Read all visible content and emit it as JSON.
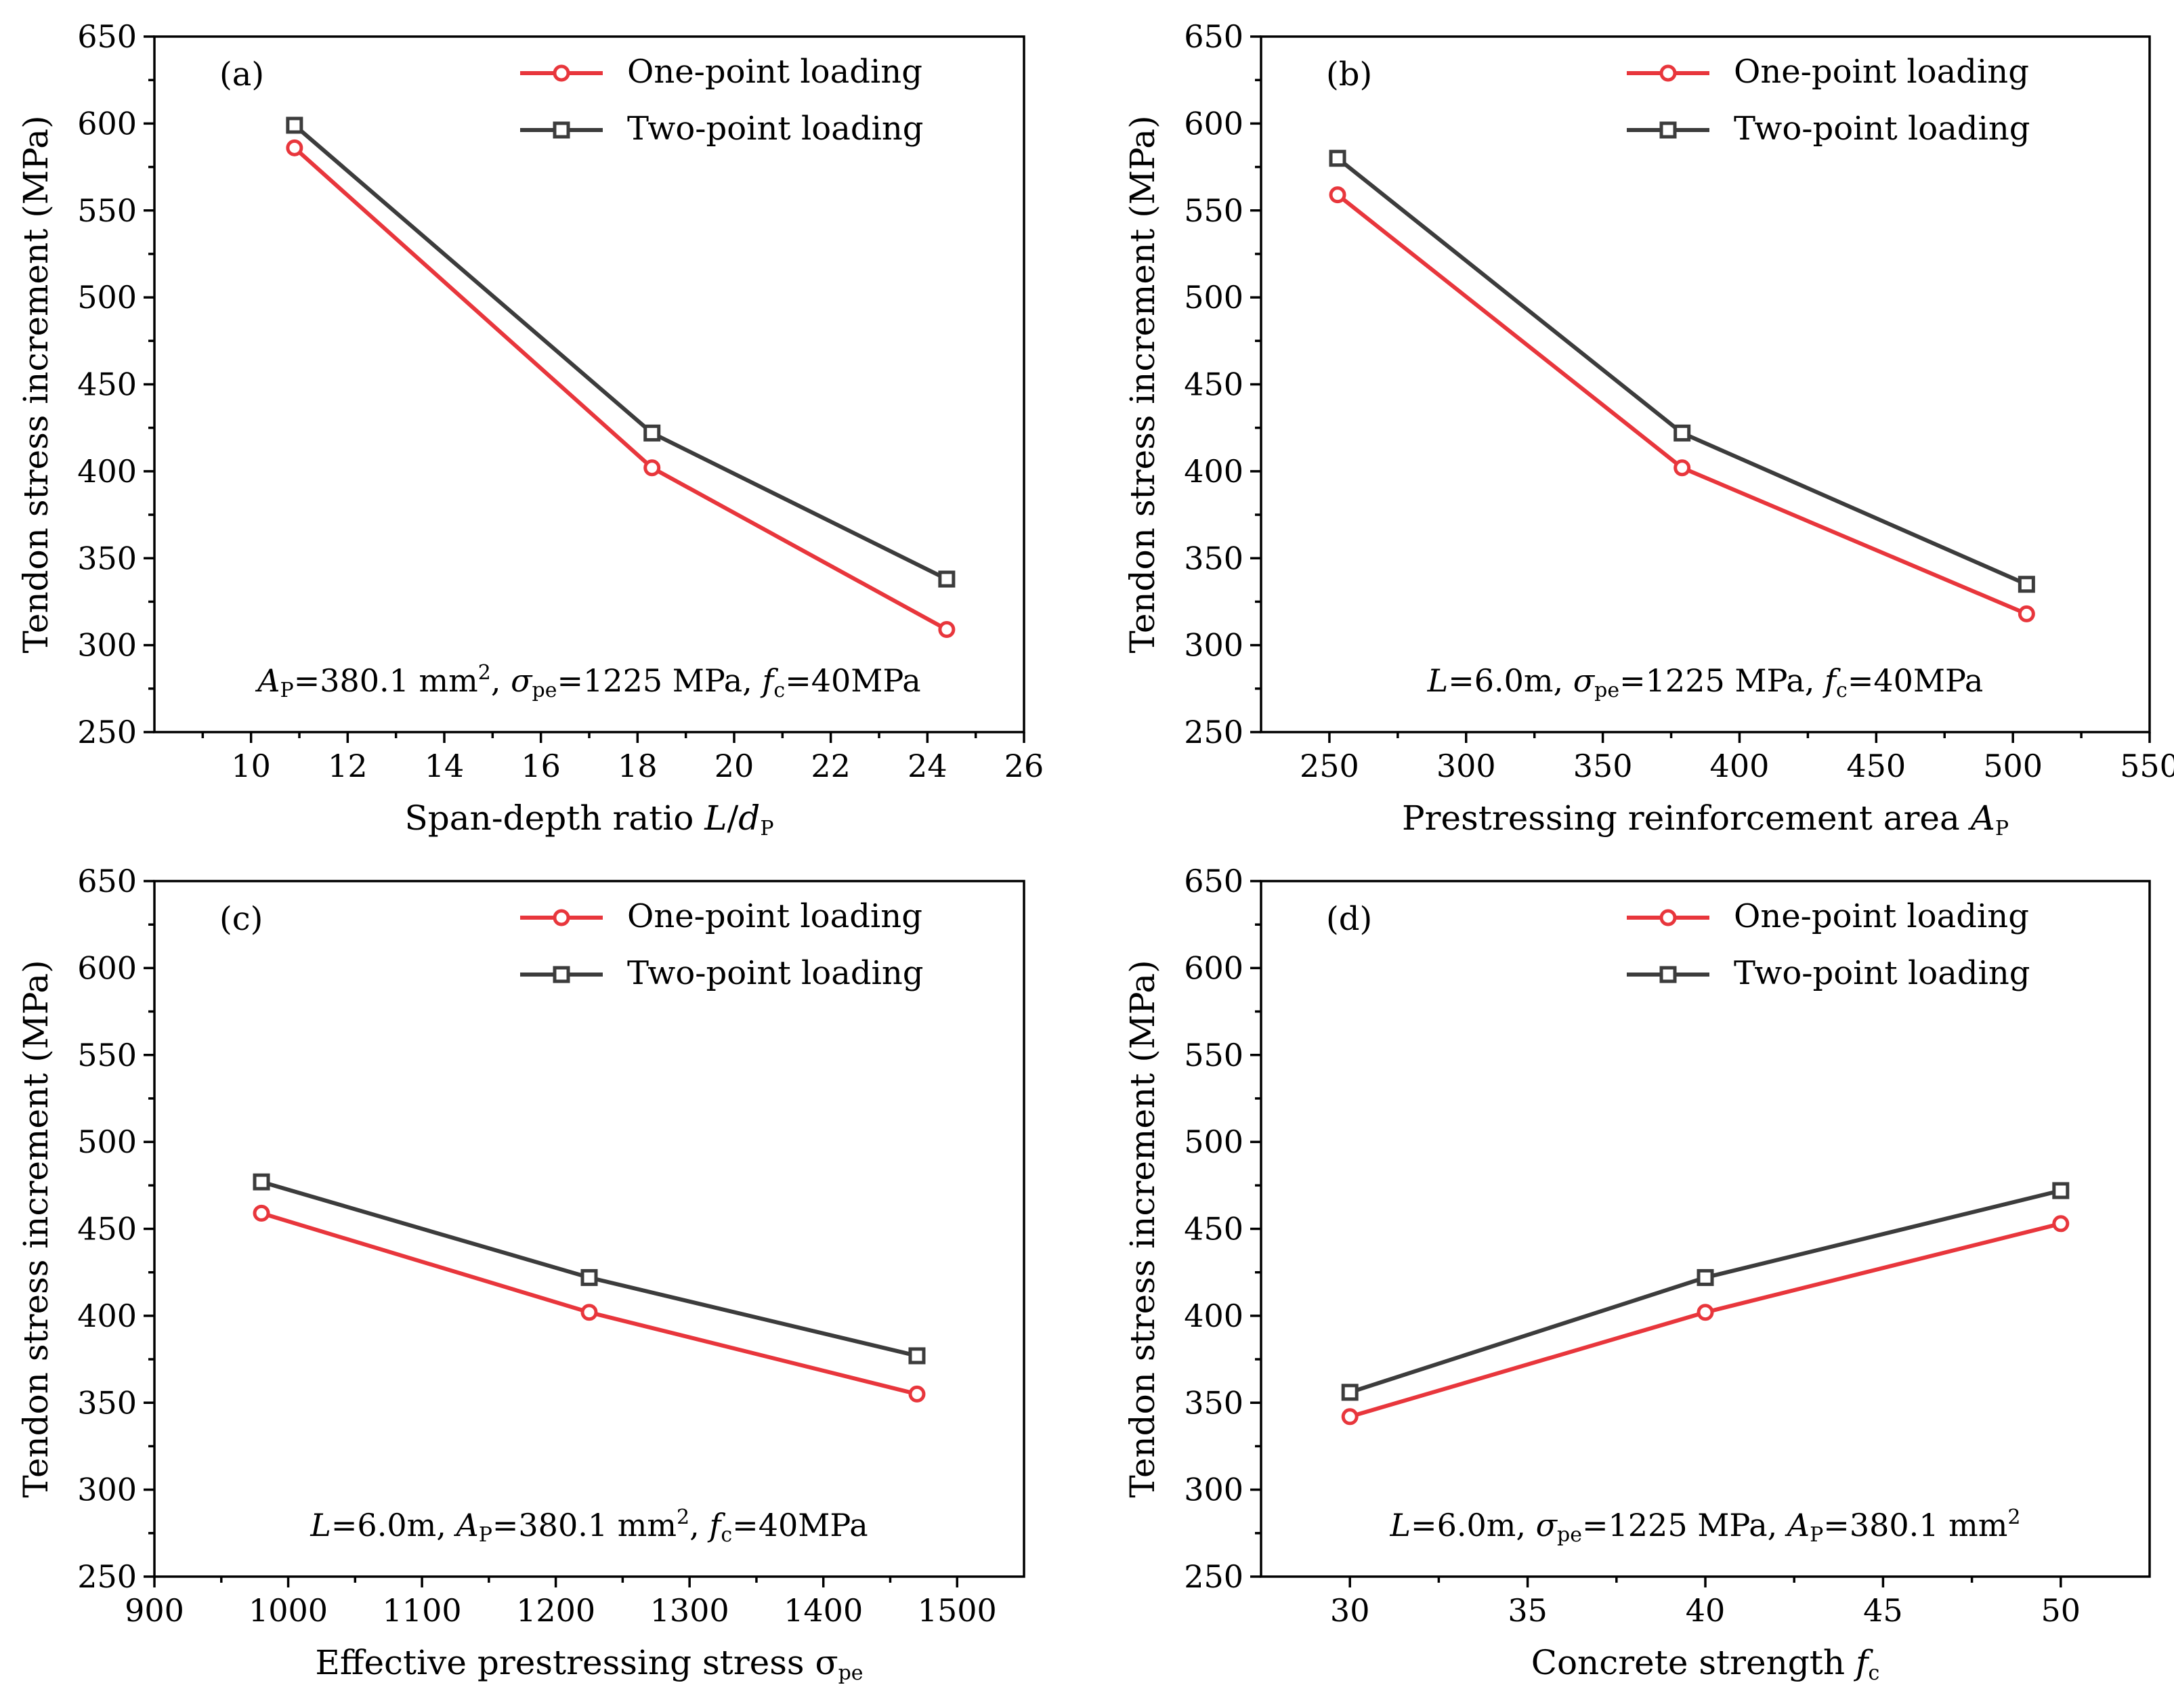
{
  "colors": {
    "one_point": "#e8363c",
    "two_point": "#3c3c3c",
    "axis": "#000000"
  },
  "legend": {
    "one_point": "One-point loading",
    "two_point": "Two-point loading"
  },
  "chart_data": [
    {
      "type": "line",
      "tag": "(a)",
      "xlim": [
        8,
        26
      ],
      "ylim": [
        250,
        650
      ],
      "xticks": [
        10,
        12,
        14,
        16,
        18,
        20,
        22,
        24,
        26
      ],
      "yticks": [
        250,
        300,
        350,
        400,
        450,
        500,
        550,
        600,
        650
      ],
      "ylabel": "Tendon stress increment (MPa)",
      "xlabel": [
        {
          "t": "Span-depth ratio "
        },
        {
          "t": "L",
          "i": true
        },
        {
          "t": "/"
        },
        {
          "t": "d",
          "i": true
        },
        {
          "t": "P",
          "sub": true
        }
      ],
      "note": [
        {
          "t": "A",
          "i": true
        },
        {
          "t": "P",
          "sub": true
        },
        {
          "t": "=380.1 mm"
        },
        {
          "t": "2",
          "sup": true
        },
        {
          "t": ", "
        },
        {
          "t": "σ",
          "i": true
        },
        {
          "t": "pe",
          "sub": true
        },
        {
          "t": "=1225 MPa, "
        },
        {
          "t": "f",
          "i": true
        },
        {
          "t": "c",
          "sub": true
        },
        {
          "t": "=40MPa"
        }
      ],
      "x": [
        10.9,
        18.3,
        24.4
      ],
      "series": [
        {
          "name": "One-point loading",
          "values": [
            586,
            402,
            309
          ]
        },
        {
          "name": "Two-point loading",
          "values": [
            599,
            422,
            338
          ]
        }
      ]
    },
    {
      "type": "line",
      "tag": "(b)",
      "xlim": [
        225,
        550
      ],
      "ylim": [
        250,
        650
      ],
      "xticks": [
        250,
        300,
        350,
        400,
        450,
        500,
        550
      ],
      "yticks": [
        250,
        300,
        350,
        400,
        450,
        500,
        550,
        600,
        650
      ],
      "ylabel": "Tendon stress increment (MPa)",
      "xlabel": [
        {
          "t": "Prestressing reinforcement area "
        },
        {
          "t": "A",
          "i": true
        },
        {
          "t": "P",
          "sub": true
        }
      ],
      "note": [
        {
          "t": "L",
          "i": true
        },
        {
          "t": "=6.0m, "
        },
        {
          "t": "σ",
          "i": true
        },
        {
          "t": "pe",
          "sub": true
        },
        {
          "t": "=1225 MPa, "
        },
        {
          "t": "f",
          "i": true
        },
        {
          "t": "c",
          "sub": true
        },
        {
          "t": "=40MPa"
        }
      ],
      "x": [
        253,
        379,
        505
      ],
      "series": [
        {
          "name": "One-point loading",
          "values": [
            559,
            402,
            318
          ]
        },
        {
          "name": "Two-point loading",
          "values": [
            580,
            422,
            335
          ]
        }
      ]
    },
    {
      "type": "line",
      "tag": "(c)",
      "xlim": [
        900,
        1550
      ],
      "ylim": [
        250,
        650
      ],
      "xticks": [
        900,
        1000,
        1100,
        1200,
        1300,
        1400,
        1500
      ],
      "yticks": [
        250,
        300,
        350,
        400,
        450,
        500,
        550,
        600,
        650
      ],
      "ylabel": "Tendon stress increment (MPa)",
      "xlabel": [
        {
          "t": "Effective prestressing stress σ"
        },
        {
          "t": "pe",
          "sub": true
        }
      ],
      "note": [
        {
          "t": "L",
          "i": true
        },
        {
          "t": "=6.0m, "
        },
        {
          "t": "A",
          "i": true
        },
        {
          "t": "P",
          "sub": true
        },
        {
          "t": "=380.1 mm"
        },
        {
          "t": "2",
          "sup": true
        },
        {
          "t": ", "
        },
        {
          "t": "f",
          "i": true
        },
        {
          "t": "c",
          "sub": true
        },
        {
          "t": "=40MPa"
        }
      ],
      "x": [
        980,
        1225,
        1470
      ],
      "series": [
        {
          "name": "One-point loading",
          "values": [
            459,
            402,
            355
          ]
        },
        {
          "name": "Two-point loading",
          "values": [
            477,
            422,
            377
          ]
        }
      ]
    },
    {
      "type": "line",
      "tag": "(d)",
      "xlim": [
        27.5,
        52.5
      ],
      "ylim": [
        250,
        650
      ],
      "xticks": [
        30,
        35,
        40,
        45,
        50
      ],
      "yticks": [
        250,
        300,
        350,
        400,
        450,
        500,
        550,
        600,
        650
      ],
      "ylabel": "Tendon stress increment (MPa)",
      "xlabel": [
        {
          "t": "Concrete strength "
        },
        {
          "t": "f",
          "i": true
        },
        {
          "t": "c",
          "sub": true
        }
      ],
      "note": [
        {
          "t": "L",
          "i": true
        },
        {
          "t": "=6.0m, "
        },
        {
          "t": "σ",
          "i": true
        },
        {
          "t": "pe",
          "sub": true
        },
        {
          "t": "=1225 MPa, "
        },
        {
          "t": "A",
          "i": true
        },
        {
          "t": "P",
          "sub": true
        },
        {
          "t": "=380.1 mm"
        },
        {
          "t": "2",
          "sup": true
        }
      ],
      "x": [
        30,
        40,
        50
      ],
      "series": [
        {
          "name": "One-point loading",
          "values": [
            342,
            402,
            453
          ]
        },
        {
          "name": "Two-point loading",
          "values": [
            356,
            422,
            472
          ]
        }
      ]
    }
  ]
}
